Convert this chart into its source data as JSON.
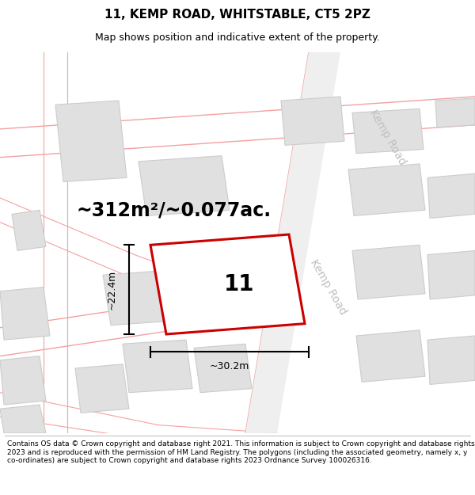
{
  "title_line1": "11, KEMP ROAD, WHITSTABLE, CT5 2PZ",
  "title_line2": "Map shows position and indicative extent of the property.",
  "footer_text": "Contains OS data © Crown copyright and database right 2021. This information is subject to Crown copyright and database rights 2023 and is reproduced with the permission of HM Land Registry. The polygons (including the associated geometry, namely x, y co-ordinates) are subject to Crown copyright and database rights 2023 Ordnance Survey 100026316.",
  "area_text": "~312m²/~0.077ac.",
  "width_text": "~30.2m",
  "height_text": "~22.4m",
  "house_number": "11",
  "road_label1": "Kemp Road",
  "road_label2": "Kemp Road",
  "map_bg": "#f7f7f7",
  "building_fill": "#e0e0e0",
  "building_edge": "#cccccc",
  "road_line_color": "#f5a0a0",
  "road_fill_color": "#f0f0f0",
  "property_color": "#cc0000",
  "property_fill": "white",
  "title_fontsize": 11,
  "subtitle_fontsize": 9,
  "footer_fontsize": 6.5,
  "area_fontsize": 17,
  "dim_fontsize": 9,
  "house_num_fontsize": 20,
  "road_label_fontsize": 10,
  "road_label_color": "#c0c0c0"
}
